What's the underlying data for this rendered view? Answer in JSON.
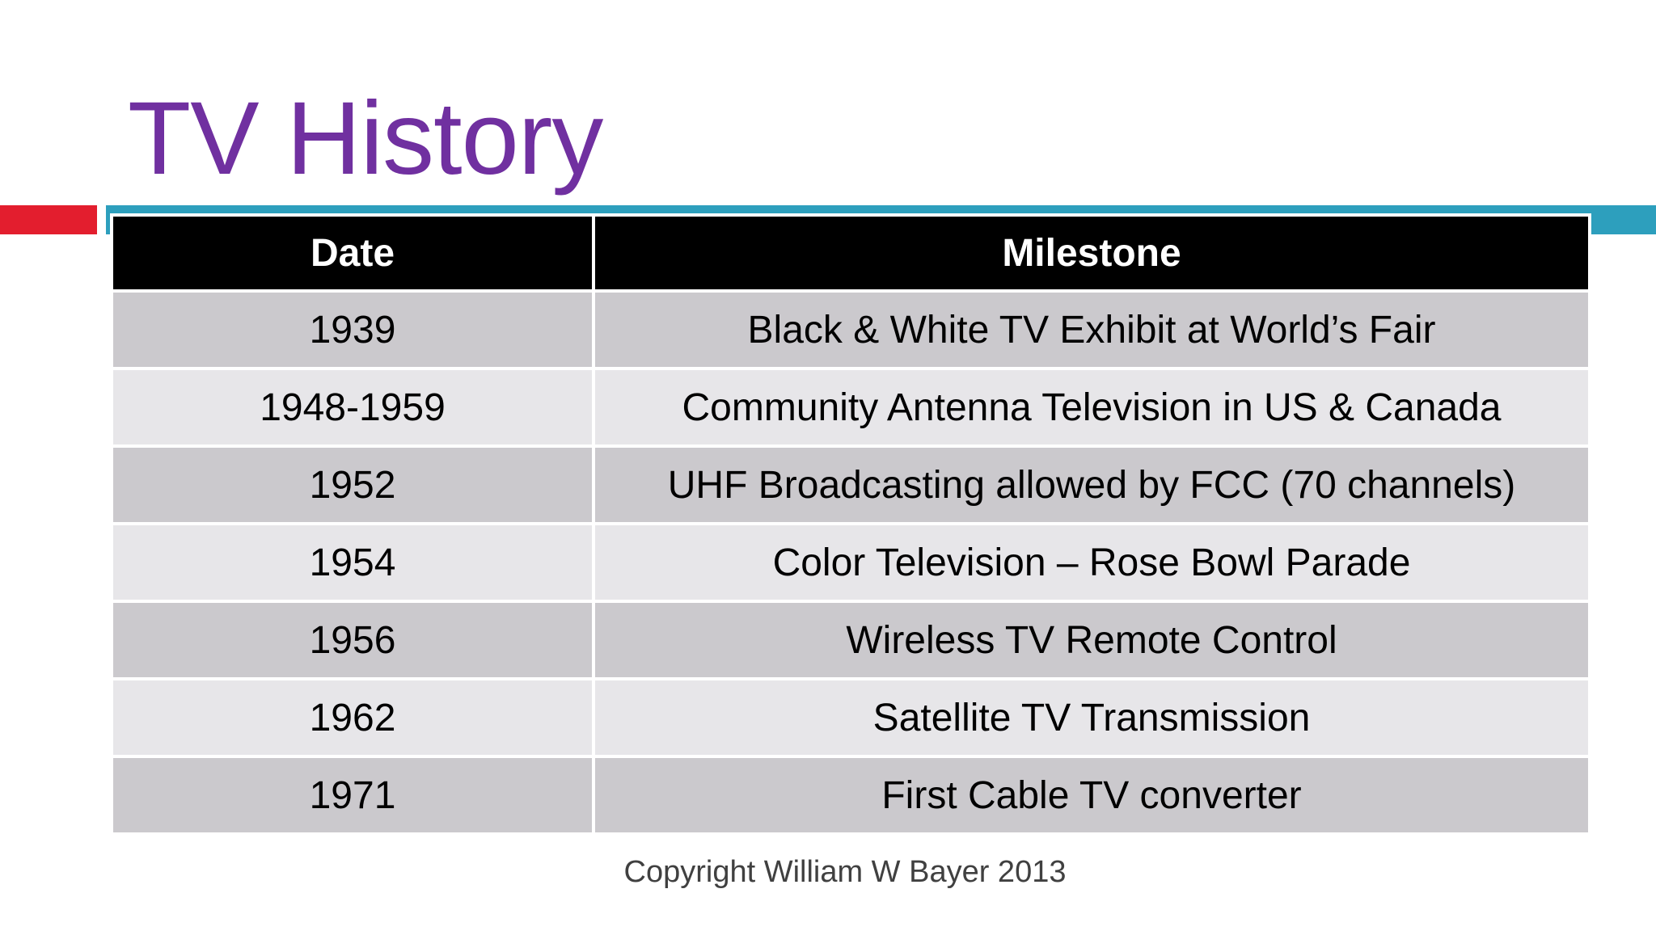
{
  "slide": {
    "title": "TV History",
    "footer": "Copyright William W Bayer 2013",
    "colors": {
      "title": "#7030a0",
      "accent_red": "#e31e2e",
      "accent_teal": "#2d9fbd",
      "header_bg": "#000000",
      "row_dark": "#cbc9cd",
      "row_light": "#e7e6e9"
    }
  },
  "table": {
    "headers": [
      "Date",
      "Milestone"
    ],
    "rows": [
      {
        "date": "1939",
        "milestone": "Black & White TV Exhibit at World’s Fair"
      },
      {
        "date": "1948-1959",
        "milestone": "Community Antenna Television in US  & Canada"
      },
      {
        "date": "1952",
        "milestone": "UHF Broadcasting allowed by FCC (70 channels)"
      },
      {
        "date": "1954",
        "milestone": "Color Television – Rose Bowl Parade"
      },
      {
        "date": "1956",
        "milestone": "Wireless TV Remote Control"
      },
      {
        "date": "1962",
        "milestone": "Satellite TV Transmission"
      },
      {
        "date": "1971",
        "milestone": "First Cable TV converter"
      }
    ]
  }
}
